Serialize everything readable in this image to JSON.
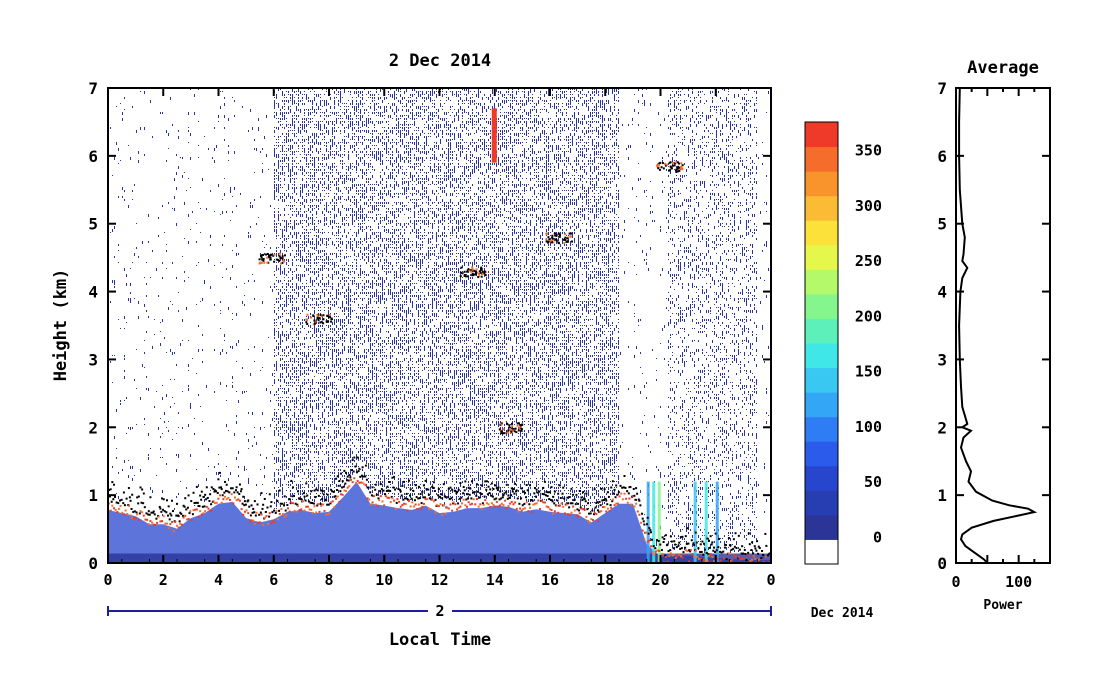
{
  "chart_data": [
    {
      "type": "heatmap",
      "title": "2 Dec 2014",
      "xlabel": "Local Time",
      "ylabel": "Height (km)",
      "xlim": [
        0,
        24
      ],
      "ylim": [
        0,
        7
      ],
      "x_ticks": [
        "0",
        "2",
        "4",
        "6",
        "8",
        "10",
        "12",
        "14",
        "16",
        "18",
        "20",
        "22",
        "0"
      ],
      "y_ticks": [
        "0",
        "1",
        "2",
        "3",
        "4",
        "5",
        "6",
        "7"
      ],
      "date_bar_label": "2",
      "date_bar_suffix": "Dec 2014",
      "features": {
        "noise_region_hours": [
          6.0,
          18.5
        ],
        "boundary_layer_top_km": [
          [
            0.0,
            0.85
          ],
          [
            0.5,
            0.8
          ],
          [
            1.0,
            0.75
          ],
          [
            1.5,
            0.62
          ],
          [
            2.0,
            0.62
          ],
          [
            2.5,
            0.55
          ],
          [
            3.0,
            0.72
          ],
          [
            3.5,
            0.8
          ],
          [
            4.0,
            0.95
          ],
          [
            4.5,
            0.98
          ],
          [
            5.0,
            0.72
          ],
          [
            5.5,
            0.65
          ],
          [
            6.0,
            0.7
          ],
          [
            6.5,
            0.82
          ],
          [
            7.0,
            0.85
          ],
          [
            7.5,
            0.8
          ],
          [
            8.0,
            0.82
          ],
          [
            8.5,
            1.05
          ],
          [
            9.0,
            1.3
          ],
          [
            9.5,
            0.95
          ],
          [
            10.0,
            0.92
          ],
          [
            10.5,
            0.88
          ],
          [
            11.0,
            0.85
          ],
          [
            11.5,
            0.92
          ],
          [
            12.0,
            0.8
          ],
          [
            12.5,
            0.82
          ],
          [
            13.0,
            0.88
          ],
          [
            13.5,
            0.88
          ],
          [
            14.0,
            0.92
          ],
          [
            14.5,
            0.9
          ],
          [
            15.0,
            0.82
          ],
          [
            15.5,
            0.86
          ],
          [
            16.0,
            0.82
          ],
          [
            16.5,
            0.8
          ],
          [
            17.0,
            0.78
          ],
          [
            17.5,
            0.65
          ],
          [
            18.0,
            0.8
          ],
          [
            18.5,
            0.95
          ],
          [
            19.0,
            0.95
          ],
          [
            19.5,
            0.3
          ],
          [
            20.0,
            0.1
          ],
          [
            21.0,
            0.12
          ],
          [
            22.0,
            0.08
          ],
          [
            23.0,
            0.05
          ],
          [
            24.0,
            0.05
          ]
        ],
        "elevated_layers": [
          {
            "hour": 13.2,
            "km": 4.3
          },
          {
            "hour": 14.6,
            "km": 2.0
          },
          {
            "hour": 16.3,
            "km": 4.8
          },
          {
            "hour": 5.9,
            "km": 4.5
          },
          {
            "hour": 7.6,
            "km": 3.6
          },
          {
            "hour": 20.3,
            "km": 5.85
          }
        ],
        "vertical_streak": {
          "hour": 14.0,
          "km_range": [
            5.9,
            6.7
          ]
        }
      }
    },
    {
      "type": "colorbar",
      "tick_labels": [
        "0",
        "50",
        "100",
        "150",
        "200",
        "250",
        "300",
        "350"
      ],
      "range": [
        -25,
        375
      ],
      "colors": [
        "#ffffff",
        "#2b3598",
        "#273db2",
        "#2745cd",
        "#2b5bea",
        "#2f7df4",
        "#33a6f6",
        "#38c8f2",
        "#3fe8e6",
        "#5df0bb",
        "#85f58e",
        "#b4f96a",
        "#e5f74a",
        "#fbe13a",
        "#fbbb34",
        "#f9942d",
        "#f66c2a",
        "#ef3a2a"
      ]
    },
    {
      "type": "line",
      "title": "Average",
      "xlabel": "Power",
      "xlim": [
        0,
        150
      ],
      "ylim": [
        0,
        7
      ],
      "x_ticks": [
        "0",
        "100"
      ],
      "y_ticks": [
        "0",
        "1",
        "2",
        "3",
        "4",
        "5",
        "6",
        "7"
      ],
      "series": [
        {
          "points": [
            [
              6,
              7.0
            ],
            [
              5,
              6.5
            ],
            [
              5,
              6.0
            ],
            [
              6,
              5.5
            ],
            [
              10,
              5.0
            ],
            [
              14,
              4.8
            ],
            [
              12,
              4.55
            ],
            [
              10,
              4.45
            ],
            [
              18,
              4.35
            ],
            [
              10,
              4.2
            ],
            [
              7,
              4.0
            ],
            [
              5,
              3.5
            ],
            [
              6,
              3.0
            ],
            [
              8,
              2.6
            ],
            [
              10,
              2.3
            ],
            [
              18,
              2.05
            ],
            [
              10,
              2.0
            ],
            [
              24,
              1.95
            ],
            [
              12,
              1.85
            ],
            [
              8,
              1.7
            ],
            [
              16,
              1.5
            ],
            [
              24,
              1.35
            ],
            [
              20,
              1.2
            ],
            [
              32,
              1.05
            ],
            [
              58,
              0.92
            ],
            [
              85,
              0.85
            ],
            [
              115,
              0.8
            ],
            [
              125,
              0.75
            ],
            [
              100,
              0.7
            ],
            [
              60,
              0.62
            ],
            [
              25,
              0.52
            ],
            [
              10,
              0.42
            ],
            [
              8,
              0.35
            ],
            [
              15,
              0.25
            ],
            [
              30,
              0.15
            ],
            [
              45,
              0.05
            ],
            [
              50,
              0.0
            ]
          ]
        }
      ]
    }
  ]
}
